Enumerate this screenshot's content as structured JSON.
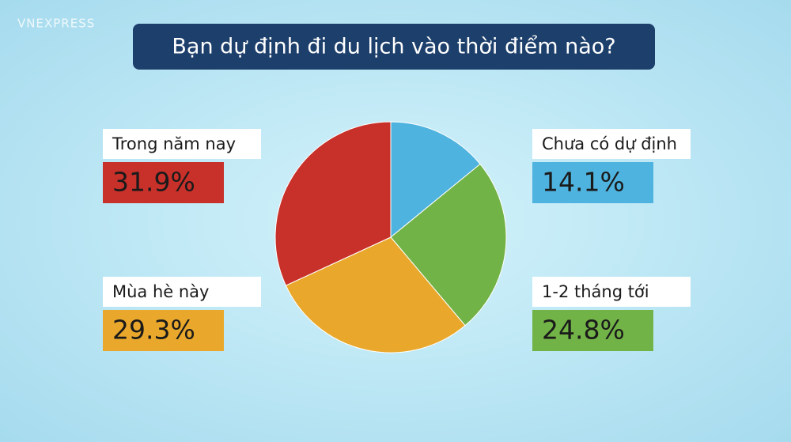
{
  "logo": "VNEXPRESS",
  "chart_data": {
    "type": "pie",
    "title": "Bạn dự định đi du lịch vào thời điểm nào?",
    "categories": [
      "Chưa có dự định",
      "1-2 tháng tới",
      "Mùa hè này",
      "Trong năm nay"
    ],
    "values": [
      14.1,
      24.8,
      29.3,
      31.9
    ],
    "value_labels": [
      "14.1%",
      "24.8%",
      "29.3%",
      "31.9%"
    ],
    "colors": [
      "#4fb3df",
      "#72b347",
      "#e9a82b",
      "#c8302a"
    ]
  }
}
